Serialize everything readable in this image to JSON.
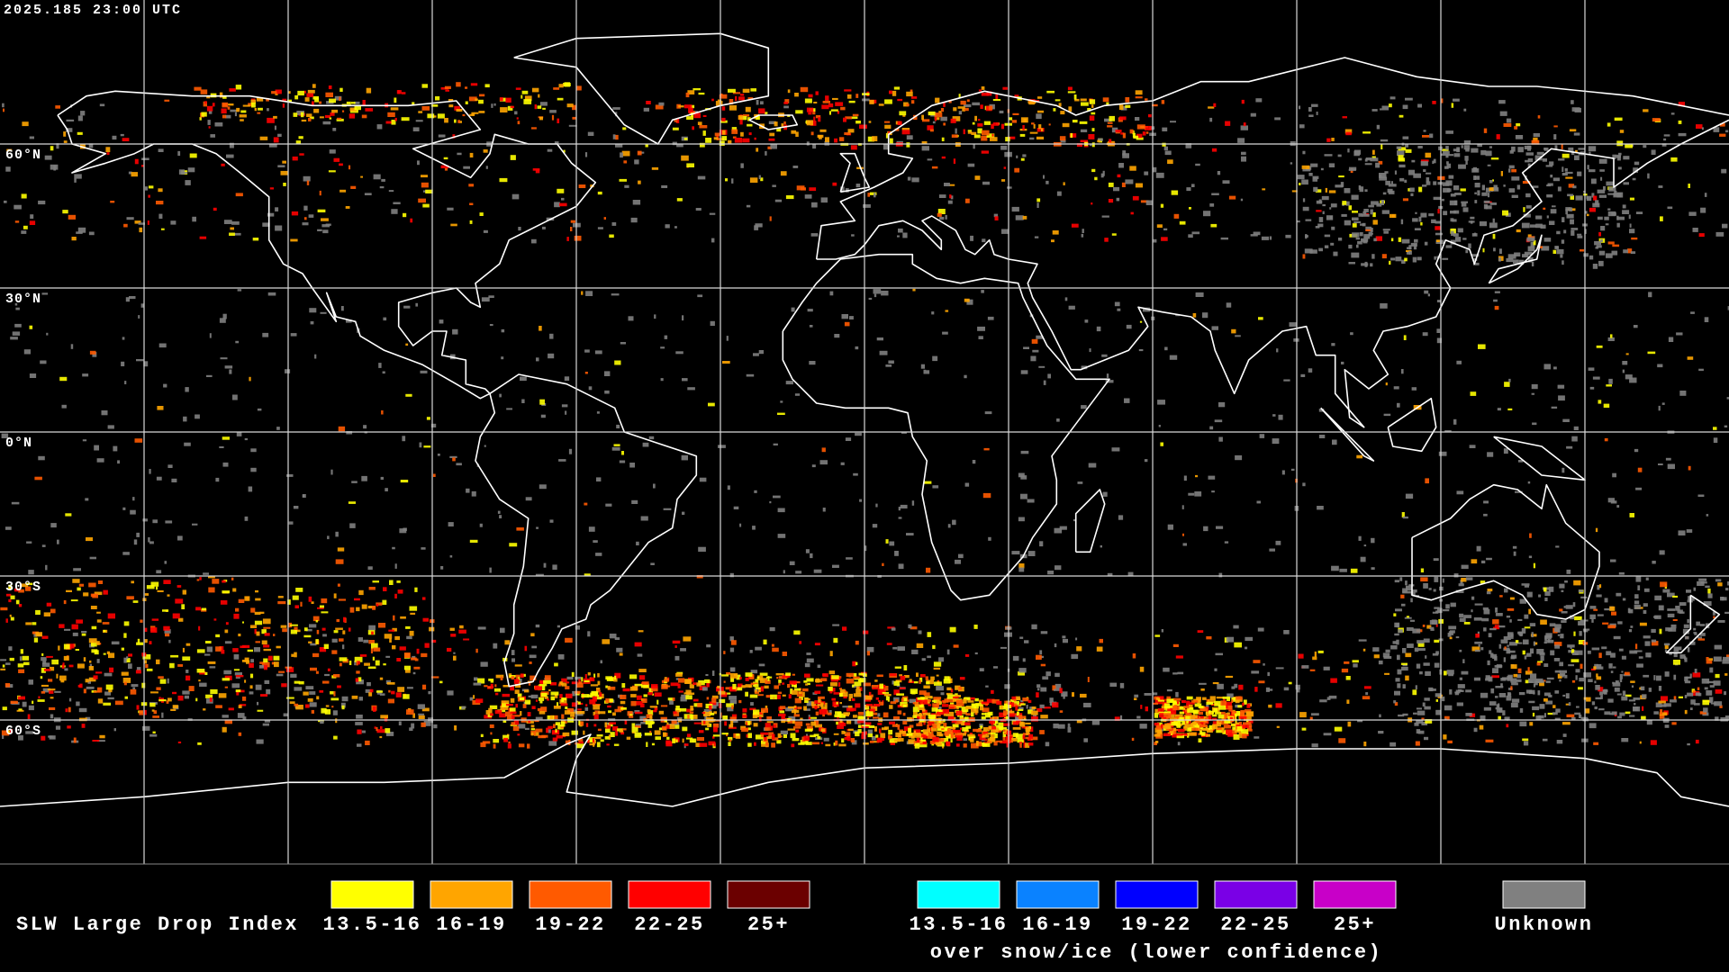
{
  "header": {
    "timestamp": "2025.185 23:00 UTC"
  },
  "grid": {
    "lat_labels": [
      "60°N",
      "30°N",
      "0°N",
      "30°S",
      "60°S"
    ]
  },
  "legend": {
    "title": "SLW Large Drop Index",
    "normal": [
      {
        "label": "13.5-16",
        "color": "#ffff00"
      },
      {
        "label": "16-19",
        "color": "#ffa500"
      },
      {
        "label": "19-22",
        "color": "#ff5a00"
      },
      {
        "label": "22-25",
        "color": "#ff0000"
      },
      {
        "label": "25+",
        "color": "#6b0000"
      }
    ],
    "snow": [
      {
        "label": "13.5-16",
        "color": "#00ffff"
      },
      {
        "label": "16-19",
        "color": "#0a82ff"
      },
      {
        "label": "19-22",
        "color": "#0000ff"
      },
      {
        "label": "22-25",
        "color": "#7a00e6"
      },
      {
        "label": "25+",
        "color": "#c800c8"
      }
    ],
    "snow_caption": "over snow/ice (lower confidence)",
    "unknown": {
      "label": "Unknown",
      "color": "#808080"
    }
  }
}
